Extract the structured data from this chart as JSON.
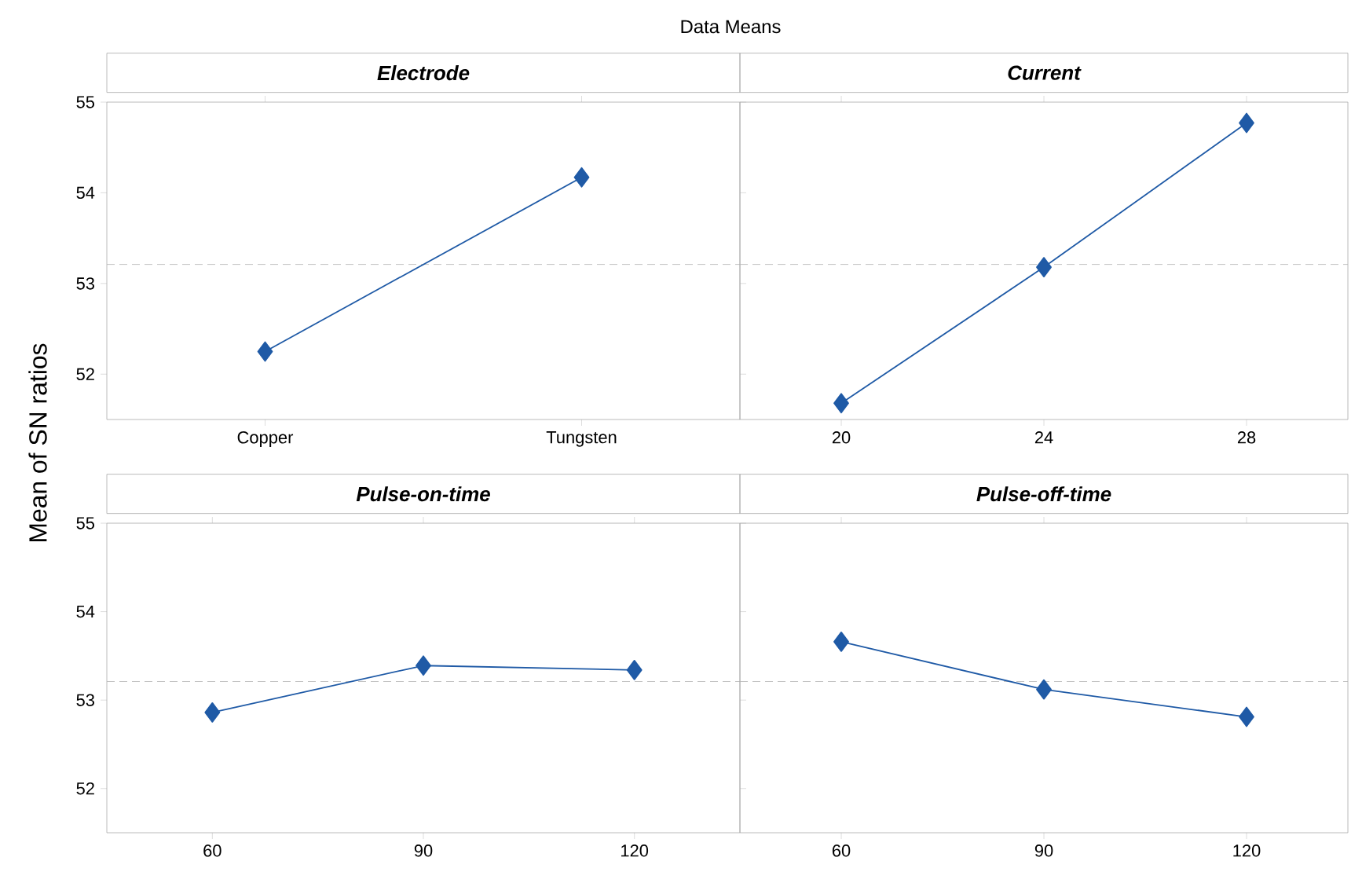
{
  "chart_data": [
    {
      "type": "line",
      "title": "Electrode",
      "ylabel": "Mean of SN ratios",
      "annotations": [
        "Data Means"
      ],
      "categories": [
        "Copper",
        "Tungsten"
      ],
      "values": [
        52.25,
        54.17
      ],
      "color": "#1f5aa6",
      "marker": "diamond",
      "line_style": "solid",
      "ylim": [
        51.5,
        55
      ],
      "yticks": [
        52,
        53,
        54,
        55
      ],
      "grid": false,
      "ref_lines": [
        {
          "axis": "y",
          "value": 53.21,
          "color": "#b4b4b4",
          "line_style": "dashed"
        }
      ]
    },
    {
      "type": "line",
      "title": "Current",
      "categories": [
        "20",
        "24",
        "28"
      ],
      "values": [
        51.68,
        53.18,
        54.77
      ],
      "color": "#1f5aa6",
      "marker": "diamond",
      "line_style": "solid",
      "ylim": [
        51.5,
        55
      ],
      "yticks": [
        52,
        53,
        54,
        55
      ],
      "tick_labels": "x",
      "grid": false,
      "ref_lines": [
        {
          "axis": "y",
          "value": 53.21,
          "color": "#b4b4b4",
          "line_style": "dashed"
        }
      ]
    },
    {
      "type": "line",
      "title": "Pulse-on-time",
      "categories": [
        "60",
        "90",
        "120"
      ],
      "values": [
        52.86,
        53.39,
        53.34
      ],
      "color": "#1f5aa6",
      "marker": "diamond",
      "line_style": "solid",
      "ylim": [
        51.5,
        55
      ],
      "yticks": [
        52,
        53,
        54,
        55
      ],
      "grid": false,
      "ref_lines": [
        {
          "axis": "y",
          "value": 53.21,
          "color": "#b4b4b4",
          "line_style": "dashed"
        }
      ]
    },
    {
      "type": "line",
      "title": "Pulse-off-time",
      "categories": [
        "60",
        "90",
        "120"
      ],
      "values": [
        53.66,
        53.12,
        52.81
      ],
      "color": "#1f5aa6",
      "marker": "diamond",
      "line_style": "solid",
      "ylim": [
        51.5,
        55
      ],
      "yticks": [
        52,
        53,
        54,
        55
      ],
      "tick_labels": "x",
      "grid": false,
      "ref_lines": [
        {
          "axis": "y",
          "value": 53.21,
          "color": "#b4b4b4",
          "line_style": "dashed"
        }
      ]
    }
  ]
}
